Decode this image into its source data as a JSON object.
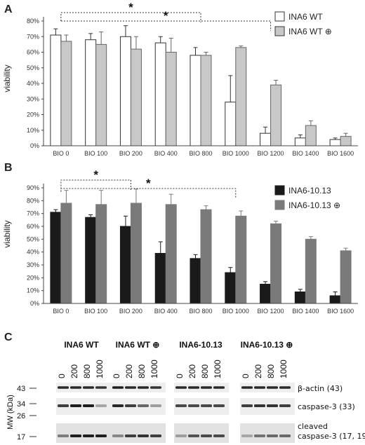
{
  "chart_data": [
    {
      "panel": "A",
      "type": "bar",
      "ylabel": "viability",
      "ylim": [
        0,
        80
      ],
      "ytick_labels": [
        "0%",
        "10%",
        "20%",
        "30%",
        "40%",
        "50%",
        "60%",
        "70%",
        "80%"
      ],
      "categories": [
        "BIO 0",
        "BIO 100",
        "BIO 200",
        "BIO 400",
        "BIO 800",
        "BIO 1000",
        "BIO 1200",
        "BIO 1400",
        "BIO 1600"
      ],
      "series": [
        {
          "name": "INA6 WT",
          "color": "#ffffff",
          "values": [
            71,
            68,
            70,
            66,
            58,
            28,
            8,
            5,
            4
          ],
          "errors": [
            4,
            4,
            7,
            4,
            5,
            17,
            4,
            2,
            1
          ]
        },
        {
          "name": "INA6 WT ⊕",
          "color": "#c8c8c8",
          "values": [
            67,
            65,
            62,
            60,
            58,
            63,
            39,
            13,
            6
          ],
          "errors": [
            4,
            8,
            8,
            9,
            2,
            1,
            3,
            3,
            2
          ]
        }
      ],
      "significance": [
        {
          "from": "BIO 0",
          "to": "BIO 800",
          "label": "*"
        },
        {
          "from": "BIO 0",
          "to": "BIO 1200",
          "label": "*"
        }
      ],
      "legend_position": "top-right"
    },
    {
      "panel": "B",
      "type": "bar",
      "ylabel": "viability",
      "ylim": [
        0,
        90
      ],
      "ytick_labels": [
        "0%",
        "10%",
        "20%",
        "30%",
        "40%",
        "50%",
        "60%",
        "70%",
        "80%",
        "90%"
      ],
      "categories": [
        "BIO 0",
        "BIO 100",
        "BIO 200",
        "BIO 400",
        "BIO 800",
        "BIO 1000",
        "BIO 1200",
        "BIO 1400",
        "BIO 1600"
      ],
      "series": [
        {
          "name": "INA6-10.13",
          "color": "#1a1a1a",
          "values": [
            71,
            67,
            60,
            39,
            35,
            24,
            15,
            9,
            6
          ],
          "errors": [
            2,
            2,
            8,
            9,
            3,
            4,
            2,
            2,
            3
          ]
        },
        {
          "name": "INA6-10.13 ⊕",
          "color": "#7a7a7a",
          "values": [
            78,
            77,
            78,
            77,
            73,
            68,
            62,
            50,
            41
          ],
          "errors": [
            10,
            11,
            11,
            8,
            3,
            4,
            2,
            2,
            2
          ]
        }
      ],
      "significance": [
        {
          "from": "BIO 0",
          "to": "BIO 200",
          "label": "*"
        },
        {
          "from": "BIO 0",
          "to": "BIO 1000",
          "label": "*"
        }
      ],
      "legend_position": "top-right"
    }
  ],
  "blot": {
    "panel": "C",
    "groups": [
      "INA6 WT",
      "INA6 WT ⊕",
      "INA6-10.13",
      "INA6-10.13 ⊕"
    ],
    "concentrations": [
      "0",
      "200",
      "800",
      "1000"
    ],
    "mw_axis_label": "MW (kDa)",
    "mw_markers": [
      "43",
      "34",
      "26",
      "17"
    ],
    "band_labels": [
      "β-actin (43)",
      "caspase-3 (33)",
      "cleaved",
      "caspase-3 (17, 19)"
    ]
  }
}
